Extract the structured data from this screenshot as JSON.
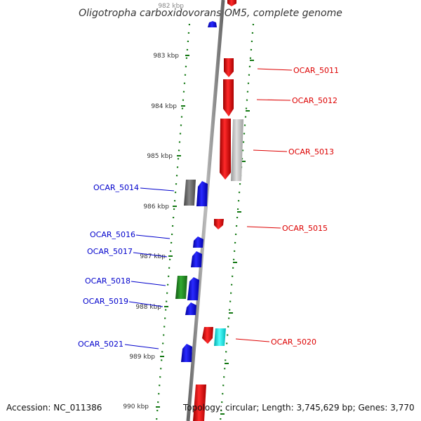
{
  "title": "Oligotropha carboxidovorans OM5, complete genome",
  "accession": "Accession: NC_011386",
  "topology": "Topology: circular; Length: 3,745,629 bp; Genes: 3,770",
  "colors": {
    "forward_label": "#dd0000",
    "reverse_label": "#0000cc",
    "axis": "#888888",
    "tick": "#008800"
  },
  "ticks": [
    {
      "label": "982 kbp"
    },
    {
      "label": "983 kbp"
    },
    {
      "label": "984 kbp"
    },
    {
      "label": "985 kbp"
    },
    {
      "label": "986 kbp"
    },
    {
      "label": "987 kbp"
    },
    {
      "label": "988 kbp"
    },
    {
      "label": "989 kbp"
    },
    {
      "label": "990 kbp"
    }
  ],
  "genes": [
    {
      "id": "top-blue",
      "strand": "-",
      "color": "#0000ee",
      "label": ""
    },
    {
      "id": "top-red",
      "strand": "+",
      "color": "#ee0000",
      "label": ""
    },
    {
      "id": "OCAR_5011",
      "strand": "+",
      "color": "#ee0000",
      "label": "OCAR_5011"
    },
    {
      "id": "OCAR_5012",
      "strand": "+",
      "color": "#ee0000",
      "label": "OCAR_5012"
    },
    {
      "id": "OCAR_5013a",
      "strand": "+",
      "color": "#ee0000",
      "label": ""
    },
    {
      "id": "OCAR_5013",
      "strand": "+",
      "color": "#bbbbbb",
      "label": "OCAR_5013"
    },
    {
      "id": "OCAR_5014a",
      "strand": "-",
      "color": "#666666",
      "label": ""
    },
    {
      "id": "OCAR_5014",
      "strand": "-",
      "color": "#0000ee",
      "label": "OCAR_5014"
    },
    {
      "id": "OCAR_5015",
      "strand": "+",
      "color": "#ee0000",
      "label": "OCAR_5015"
    },
    {
      "id": "OCAR_5016",
      "strand": "-",
      "color": "#0000ee",
      "label": "OCAR_5016"
    },
    {
      "id": "OCAR_5017",
      "strand": "-",
      "color": "#0000ee",
      "label": "OCAR_5017"
    },
    {
      "id": "OCAR_5018a",
      "strand": "-",
      "color": "#228822",
      "label": ""
    },
    {
      "id": "OCAR_5018",
      "strand": "-",
      "color": "#0000ee",
      "label": "OCAR_5018"
    },
    {
      "id": "OCAR_5019",
      "strand": "-",
      "color": "#0000ee",
      "label": "OCAR_5019"
    },
    {
      "id": "OCAR_5020a",
      "strand": "+",
      "color": "#ee0000",
      "label": ""
    },
    {
      "id": "OCAR_5020",
      "strand": "+",
      "color": "#00eeee",
      "label": "OCAR_5020"
    },
    {
      "id": "OCAR_5021",
      "strand": "-",
      "color": "#0000ee",
      "label": "OCAR_5021"
    },
    {
      "id": "bottom-red",
      "strand": "+",
      "color": "#ee0000",
      "label": ""
    }
  ]
}
